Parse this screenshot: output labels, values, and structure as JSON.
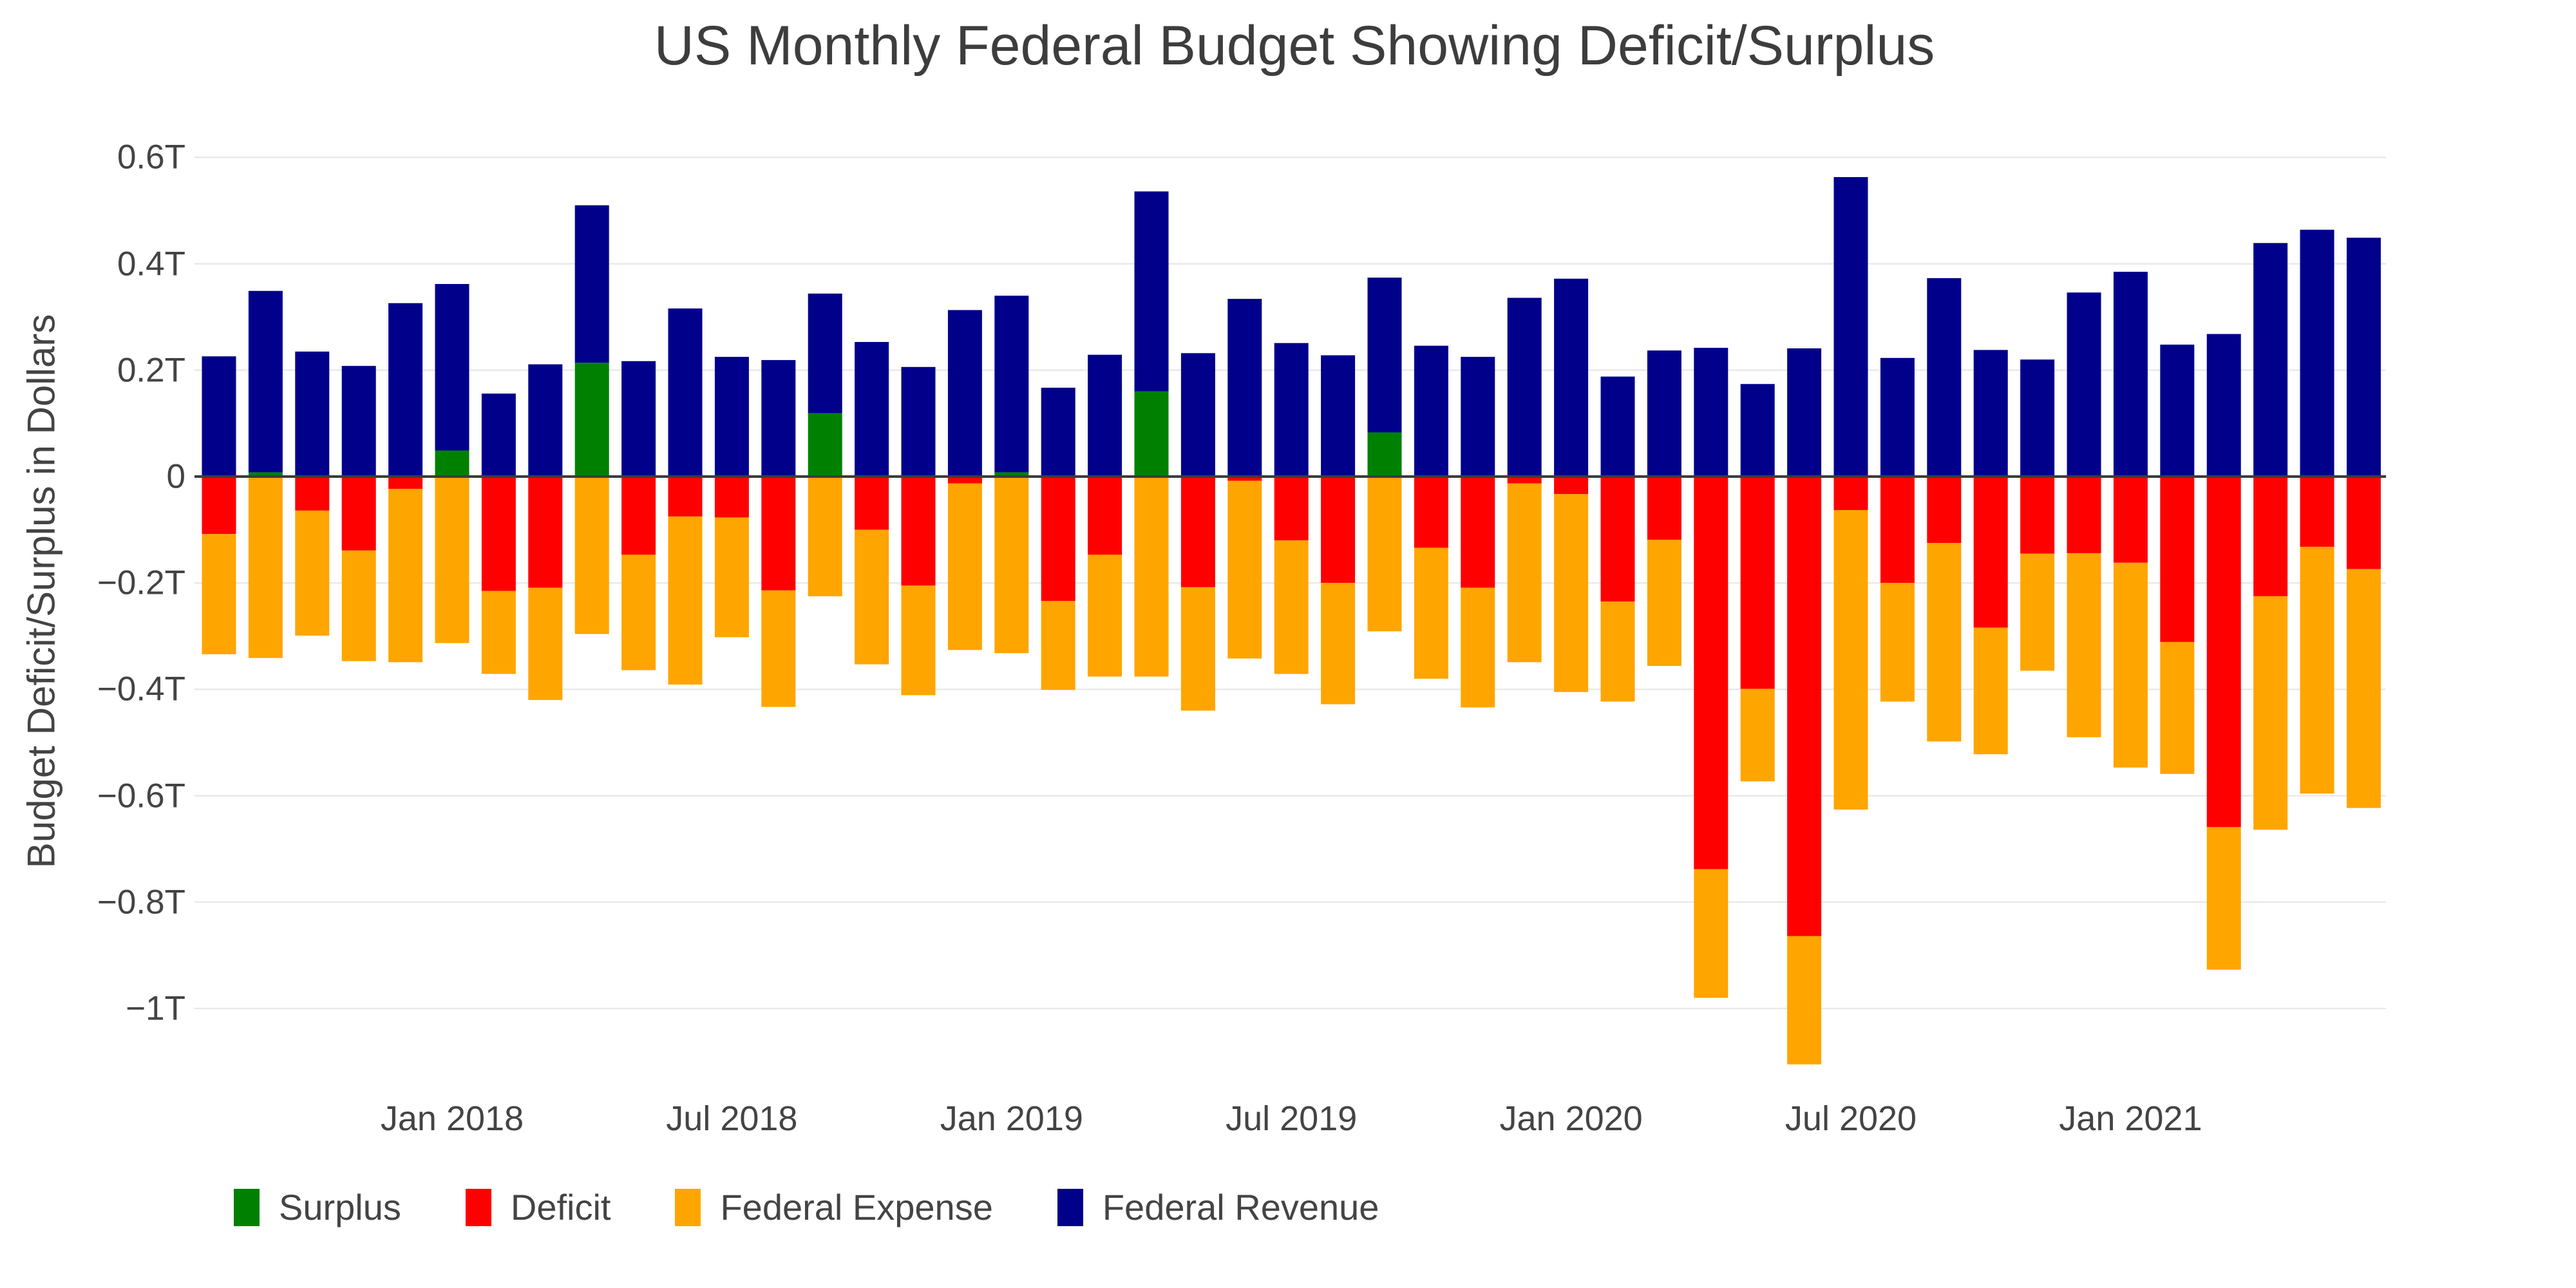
{
  "chart_data": {
    "type": "bar",
    "stacked": true,
    "title": "US Monthly Federal Budget Showing Deficit/Surplus",
    "xlabel": "",
    "ylabel": "Budget Deficit/Surplus in Dollars",
    "unit": "trillions of US dollars",
    "grid": true,
    "legend_position": "bottom",
    "ylim": [
      -1.22,
      0.69
    ],
    "background_color": "#ffffff",
    "colors": {
      "surplus": "#008000",
      "deficit": "#ff0000",
      "expense": "#ffa500",
      "revenue": "#00008b",
      "gridline": "#e9e9e9",
      "zero_line": "#3c3c3c",
      "text": "#444444",
      "title_text": "#3d3d3d"
    },
    "y_ticks": [
      {
        "label": "0.6T",
        "value": 0.6
      },
      {
        "label": "0.4T",
        "value": 0.4
      },
      {
        "label": "0.2T",
        "value": 0.2
      },
      {
        "label": "0",
        "value": 0
      },
      {
        "label": "−0.2T",
        "value": -0.2
      },
      {
        "label": "−0.4T",
        "value": -0.4
      },
      {
        "label": "−0.6T",
        "value": -0.6
      },
      {
        "label": "−0.8T",
        "value": -0.8
      },
      {
        "label": "−1T",
        "value": -1.0
      }
    ],
    "x_ticks": [
      {
        "label": "Jan 2018",
        "index": 5
      },
      {
        "label": "Jul 2018",
        "index": 11
      },
      {
        "label": "Jan 2019",
        "index": 17
      },
      {
        "label": "Jul 2019",
        "index": 23
      },
      {
        "label": "Jan 2020",
        "index": 29
      },
      {
        "label": "Jul 2020",
        "index": 35
      },
      {
        "label": "Jan 2021",
        "index": 41
      }
    ],
    "legend": [
      {
        "name": "Surplus",
        "color_key": "surplus"
      },
      {
        "name": "Deficit",
        "color_key": "deficit"
      },
      {
        "name": "Federal Expense",
        "color_key": "expense"
      },
      {
        "name": "Federal Revenue",
        "color_key": "revenue"
      }
    ],
    "categories": [
      "Aug 2017",
      "Sep 2017",
      "Oct 2017",
      "Nov 2017",
      "Dec 2017",
      "Jan 2018",
      "Feb 2018",
      "Mar 2018",
      "Apr 2018",
      "May 2018",
      "Jun 2018",
      "Jul 2018",
      "Aug 2018",
      "Sep 2018",
      "Oct 2018",
      "Nov 2018",
      "Dec 2018",
      "Jan 2019",
      "Feb 2019",
      "Mar 2019",
      "Apr 2019",
      "May 2019",
      "Jun 2019",
      "Jul 2019",
      "Aug 2019",
      "Sep 2019",
      "Oct 2019",
      "Nov 2019",
      "Dec 2019",
      "Jan 2020",
      "Feb 2020",
      "Mar 2020",
      "Apr 2020",
      "May 2020",
      "Jun 2020",
      "Jul 2020",
      "Aug 2020",
      "Sep 2020",
      "Oct 2020",
      "Nov 2020",
      "Dec 2020",
      "Jan 2021",
      "Feb 2021",
      "Mar 2021",
      "Apr 2021",
      "May 2021",
      "Jun 2021"
    ],
    "series": [
      {
        "name": "Federal Revenue",
        "values": [
          0.226,
          0.349,
          0.235,
          0.208,
          0.326,
          0.362,
          0.156,
          0.211,
          0.51,
          0.217,
          0.316,
          0.225,
          0.219,
          0.344,
          0.253,
          0.206,
          0.313,
          0.34,
          0.167,
          0.229,
          0.536,
          0.232,
          0.334,
          0.251,
          0.228,
          0.374,
          0.246,
          0.225,
          0.336,
          0.372,
          0.188,
          0.237,
          0.242,
          0.174,
          0.241,
          0.563,
          0.223,
          0.373,
          0.238,
          0.22,
          0.346,
          0.385,
          0.248,
          0.268,
          0.439,
          0.464,
          0.449
        ]
      },
      {
        "name": "Federal Expense",
        "values": [
          0.334,
          0.341,
          0.299,
          0.347,
          0.349,
          0.313,
          0.371,
          0.42,
          0.296,
          0.364,
          0.391,
          0.302,
          0.433,
          0.225,
          0.353,
          0.411,
          0.326,
          0.332,
          0.401,
          0.376,
          0.376,
          0.44,
          0.342,
          0.371,
          0.428,
          0.291,
          0.38,
          0.434,
          0.349,
          0.405,
          0.423,
          0.356,
          0.98,
          0.573,
          1.105,
          0.626,
          0.423,
          0.498,
          0.522,
          0.365,
          0.49,
          0.547,
          0.559,
          0.927,
          0.664,
          0.596,
          0.623
        ]
      },
      {
        "name": "Surplus",
        "values": [
          0,
          0.008,
          0,
          0,
          0,
          0.049,
          0,
          0,
          0.214,
          0,
          0,
          0,
          0,
          0.119,
          0,
          0,
          0,
          0.008,
          0,
          0,
          0.16,
          0,
          0,
          0,
          0,
          0.083,
          0,
          0,
          0,
          0,
          0,
          0,
          0,
          0,
          0,
          0,
          0,
          0,
          0,
          0,
          0,
          0,
          0,
          0,
          0,
          0,
          0
        ]
      },
      {
        "name": "Deficit",
        "values": [
          0.108,
          0,
          0.064,
          0.139,
          0.023,
          0,
          0.215,
          0.209,
          0,
          0.147,
          0.075,
          0.077,
          0.214,
          0,
          0.1,
          0.205,
          0.013,
          0,
          0.234,
          0.147,
          0,
          0.208,
          0.008,
          0.12,
          0.2,
          0,
          0.134,
          0.209,
          0.013,
          0.033,
          0.235,
          0.119,
          0.738,
          0.399,
          0.864,
          0.063,
          0.2,
          0.125,
          0.284,
          0.145,
          0.144,
          0.162,
          0.311,
          0.659,
          0.225,
          0.132,
          0.174
        ]
      }
    ]
  }
}
